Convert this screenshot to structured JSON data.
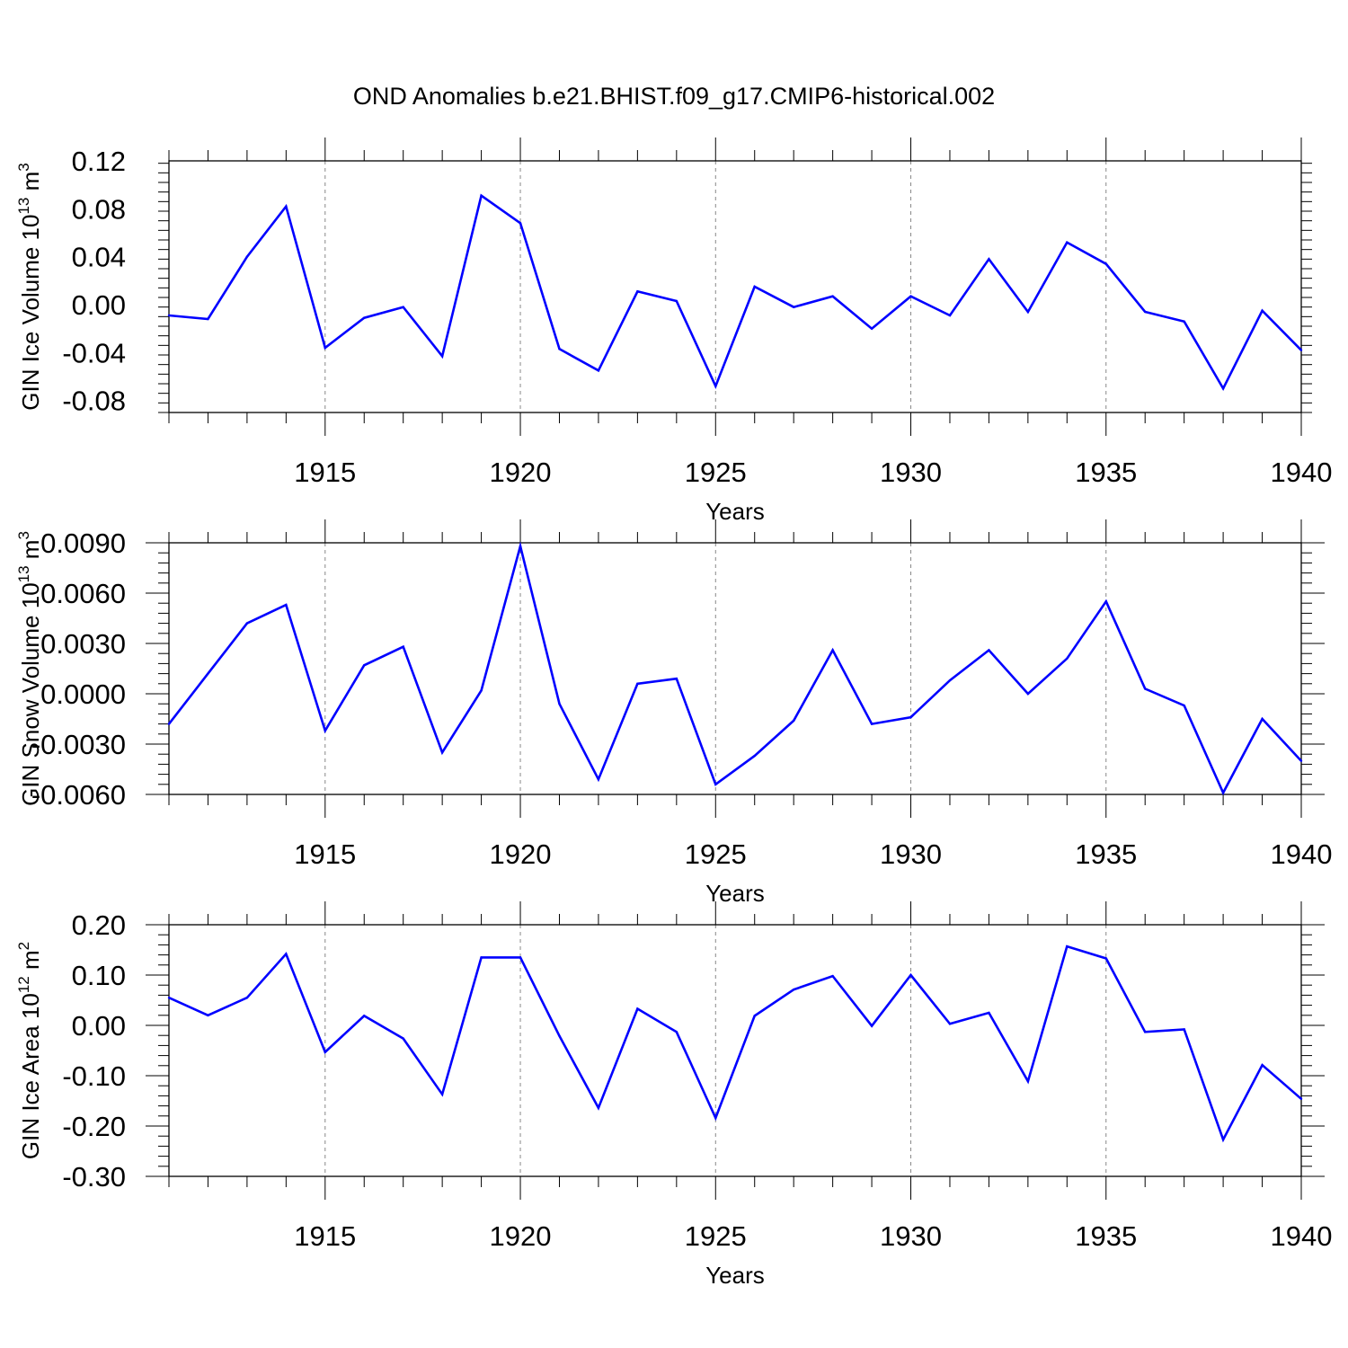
{
  "title": "OND Anomalies b.e21.BHIST.f09_g17.CMIP6-historical.002",
  "chart_data": [
    {
      "type": "line",
      "ylabel": "GIN Ice Volume 10^13 m^3",
      "ylabel_parts": {
        "base": "GIN Ice Volume 10",
        "exp1": "13",
        "unit": " m",
        "exp2": "3"
      },
      "xlabel": "Years",
      "xlim": [
        1911,
        1940
      ],
      "ylim": [
        -0.09,
        0.12
      ],
      "xticks": [
        1915,
        1920,
        1925,
        1930,
        1935,
        1940
      ],
      "xtick_labels": [
        "1915",
        "1920",
        "1925",
        "1930",
        "1935",
        "1940"
      ],
      "yticks": [
        -0.08,
        -0.04,
        0.0,
        0.04,
        0.08,
        0.12
      ],
      "ytick_labels": [
        "-0.08",
        "-0.04",
        "0.00",
        "0.04",
        "0.08",
        "0.12"
      ],
      "line_color": "#0000ff",
      "x": [
        1911,
        1912,
        1913,
        1914,
        1915,
        1916,
        1917,
        1918,
        1919,
        1920,
        1921,
        1922,
        1923,
        1924,
        1925,
        1926,
        1927,
        1928,
        1929,
        1930,
        1931,
        1932,
        1933,
        1934,
        1935,
        1936,
        1937,
        1938,
        1939,
        1940
      ],
      "y": [
        -0.009,
        -0.012,
        0.04,
        0.082,
        -0.036,
        -0.011,
        -0.002,
        -0.043,
        0.091,
        0.068,
        -0.037,
        -0.055,
        0.011,
        0.003,
        -0.068,
        0.015,
        -0.002,
        0.007,
        -0.02,
        0.007,
        -0.009,
        0.038,
        -0.006,
        0.052,
        0.034,
        -0.006,
        -0.014,
        -0.07,
        -0.005,
        -0.038
      ]
    },
    {
      "type": "line",
      "ylabel": "GIN Snow Volume 10^13 m^3",
      "ylabel_parts": {
        "base": "GIN Snow Volume 10",
        "exp1": "13",
        "unit": " m",
        "exp2": "3"
      },
      "xlabel": "Years",
      "xlim": [
        1911,
        1940
      ],
      "ylim": [
        -0.006,
        0.009
      ],
      "xticks": [
        1915,
        1920,
        1925,
        1930,
        1935,
        1940
      ],
      "xtick_labels": [
        "1915",
        "1920",
        "1925",
        "1930",
        "1935",
        "1940"
      ],
      "yticks": [
        -0.006,
        -0.003,
        0.0,
        0.003,
        0.006,
        0.009
      ],
      "ytick_labels": [
        "-0.0060",
        "-0.0030",
        "0.0000",
        "0.0030",
        "0.0060",
        "0.0090"
      ],
      "line_color": "#0000ff",
      "x": [
        1911,
        1912,
        1913,
        1914,
        1915,
        1916,
        1917,
        1918,
        1919,
        1920,
        1921,
        1922,
        1923,
        1924,
        1925,
        1926,
        1927,
        1928,
        1929,
        1930,
        1931,
        1932,
        1933,
        1934,
        1935,
        1936,
        1937,
        1938,
        1939,
        1940
      ],
      "y": [
        -0.0018,
        0.0012,
        0.0042,
        0.0053,
        -0.0022,
        0.0017,
        0.0028,
        -0.0035,
        0.0002,
        0.0088,
        -0.0006,
        -0.0051,
        0.0006,
        0.0009,
        -0.0054,
        -0.0037,
        -0.0016,
        0.0026,
        -0.0018,
        -0.0014,
        0.0008,
        0.0026,
        0.0,
        0.0021,
        0.0055,
        0.0003,
        -0.0007,
        -0.0059,
        -0.0015,
        -0.004
      ]
    },
    {
      "type": "line",
      "ylabel": "GIN Ice Area 10^12 m^2",
      "ylabel_parts": {
        "base": "GIN Ice Area 10",
        "exp1": "12",
        "unit": " m",
        "exp2": "2"
      },
      "xlabel": "Years",
      "xlim": [
        1911,
        1940
      ],
      "ylim": [
        -0.3,
        0.2
      ],
      "xticks": [
        1915,
        1920,
        1925,
        1930,
        1935,
        1940
      ],
      "xtick_labels": [
        "1915",
        "1920",
        "1925",
        "1930",
        "1935",
        "1940"
      ],
      "yticks": [
        -0.3,
        -0.2,
        -0.1,
        0.0,
        0.1,
        0.2
      ],
      "ytick_labels": [
        "-0.30",
        "-0.20",
        "-0.10",
        "0.00",
        "0.10",
        "0.20"
      ],
      "line_color": "#0000ff",
      "x": [
        1911,
        1912,
        1913,
        1914,
        1915,
        1916,
        1917,
        1918,
        1919,
        1920,
        1921,
        1922,
        1923,
        1924,
        1925,
        1926,
        1927,
        1928,
        1929,
        1930,
        1931,
        1932,
        1933,
        1934,
        1935,
        1936,
        1937,
        1938,
        1939,
        1940
      ],
      "y": [
        0.055,
        0.02,
        0.055,
        0.142,
        -0.053,
        0.019,
        -0.026,
        -0.137,
        0.135,
        0.135,
        -0.021,
        -0.164,
        0.033,
        -0.013,
        -0.184,
        0.019,
        0.071,
        0.098,
        -0.001,
        0.1,
        0.003,
        0.025,
        -0.111,
        0.157,
        0.133,
        -0.013,
        -0.008,
        -0.227,
        -0.079,
        -0.146
      ]
    }
  ]
}
